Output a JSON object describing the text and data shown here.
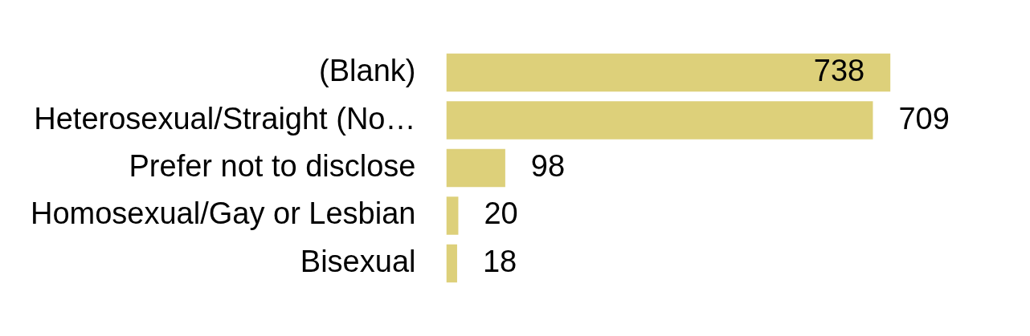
{
  "chart_data": {
    "type": "bar",
    "orientation": "horizontal",
    "categories": [
      "(Blank)",
      "Heterosexual/Straight (No…",
      "Prefer not to disclose",
      "Homosexual/Gay or Lesbian",
      "Bisexual"
    ],
    "values": [
      738,
      709,
      98,
      20,
      18
    ],
    "color": "#ddd07a",
    "data_labels": true,
    "legend": false,
    "tick_labels": "y"
  }
}
